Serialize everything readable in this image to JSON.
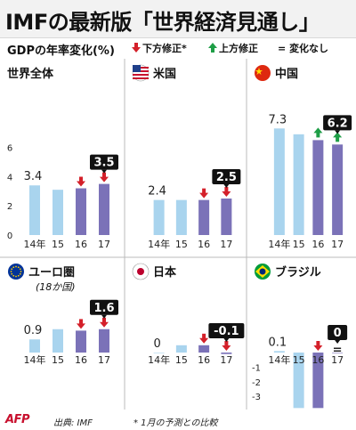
{
  "title": "IMFの最新版「世界経済見通し」",
  "subtitle": "GDPの年率変化(%)",
  "legend": {
    "down": "下方修正*",
    "up": "上方修正",
    "equal_symbol": "=",
    "equal": "変化なし"
  },
  "colors": {
    "light_bar": "#a9d4ee",
    "dark_bar": "#7b72b8",
    "down_arrow": "#d4202a",
    "up_arrow": "#1e9e46",
    "label_box": "#111111",
    "divider": "#bbbbbb"
  },
  "chart_data": [
    {
      "type": "bar",
      "title": "世界全体",
      "categories": [
        "14年",
        "15",
        "16",
        "17"
      ],
      "values": [
        3.4,
        3.1,
        3.2,
        3.5
      ],
      "highlight": [
        false,
        false,
        true,
        true
      ],
      "revisions": [
        "none",
        "none",
        "down",
        "down"
      ],
      "labels": [
        {
          "index": 0,
          "text": "3.4",
          "boxed": false
        },
        {
          "index": 3,
          "text": "3.5",
          "boxed": true
        }
      ],
      "yticks": [
        0,
        2,
        4,
        6
      ],
      "ylim": [
        0,
        7.5
      ]
    },
    {
      "type": "bar",
      "title": "米国",
      "categories": [
        "14年",
        "15",
        "16",
        "17"
      ],
      "values": [
        2.4,
        2.4,
        2.4,
        2.5
      ],
      "highlight": [
        false,
        false,
        true,
        true
      ],
      "revisions": [
        "none",
        "none",
        "down",
        "down"
      ],
      "labels": [
        {
          "index": 0,
          "text": "2.4",
          "boxed": false
        },
        {
          "index": 3,
          "text": "2.5",
          "boxed": true
        }
      ],
      "ylim": [
        0,
        7.5
      ]
    },
    {
      "type": "bar",
      "title": "中国",
      "categories": [
        "14年",
        "15",
        "16",
        "17"
      ],
      "values": [
        7.3,
        6.9,
        6.5,
        6.2
      ],
      "highlight": [
        false,
        false,
        true,
        true
      ],
      "revisions": [
        "none",
        "none",
        "up",
        "up"
      ],
      "labels": [
        {
          "index": 0,
          "text": "7.3",
          "boxed": false
        },
        {
          "index": 3,
          "text": "6.2",
          "boxed": true
        }
      ],
      "ylim": [
        0,
        7.5
      ]
    },
    {
      "type": "bar",
      "title": "ユーロ圏",
      "subtitle": "(18か国)",
      "categories": [
        "14年",
        "15",
        "16",
        "17"
      ],
      "values": [
        0.9,
        1.6,
        1.5,
        1.6
      ],
      "highlight": [
        false,
        false,
        true,
        true
      ],
      "revisions": [
        "none",
        "none",
        "down",
        "down"
      ],
      "labels": [
        {
          "index": 0,
          "text": "0.9",
          "boxed": false
        },
        {
          "index": 3,
          "text": "1.6",
          "boxed": true
        }
      ],
      "ylim": [
        -3.6,
        2.6
      ]
    },
    {
      "type": "bar",
      "title": "日本",
      "categories": [
        "14年",
        "15",
        "16",
        "17"
      ],
      "values": [
        0.0,
        0.5,
        0.5,
        -0.1
      ],
      "highlight": [
        false,
        false,
        true,
        true
      ],
      "revisions": [
        "none",
        "none",
        "down",
        "down"
      ],
      "labels": [
        {
          "index": 0,
          "text": "0",
          "boxed": false
        },
        {
          "index": 3,
          "text": "-0.1",
          "boxed": true
        }
      ],
      "ylim": [
        -3.6,
        2.6
      ]
    },
    {
      "type": "bar",
      "title": "ブラジル",
      "categories": [
        "14年",
        "15",
        "16",
        "17"
      ],
      "values": [
        0.1,
        -3.8,
        -3.8,
        0.0
      ],
      "highlight": [
        false,
        false,
        true,
        true
      ],
      "revisions": [
        "none",
        "none",
        "down",
        "equal"
      ],
      "labels": [
        {
          "index": 0,
          "text": "0.1",
          "boxed": false
        },
        {
          "index": 3,
          "text": "0",
          "boxed": true
        }
      ],
      "yticks": [
        -1,
        -2,
        -3
      ],
      "ylim": [
        -3.6,
        2.6
      ]
    }
  ],
  "footer": {
    "logo": "AFP",
    "source": "出典: IMF",
    "note": "* 1月の予測との比較"
  }
}
